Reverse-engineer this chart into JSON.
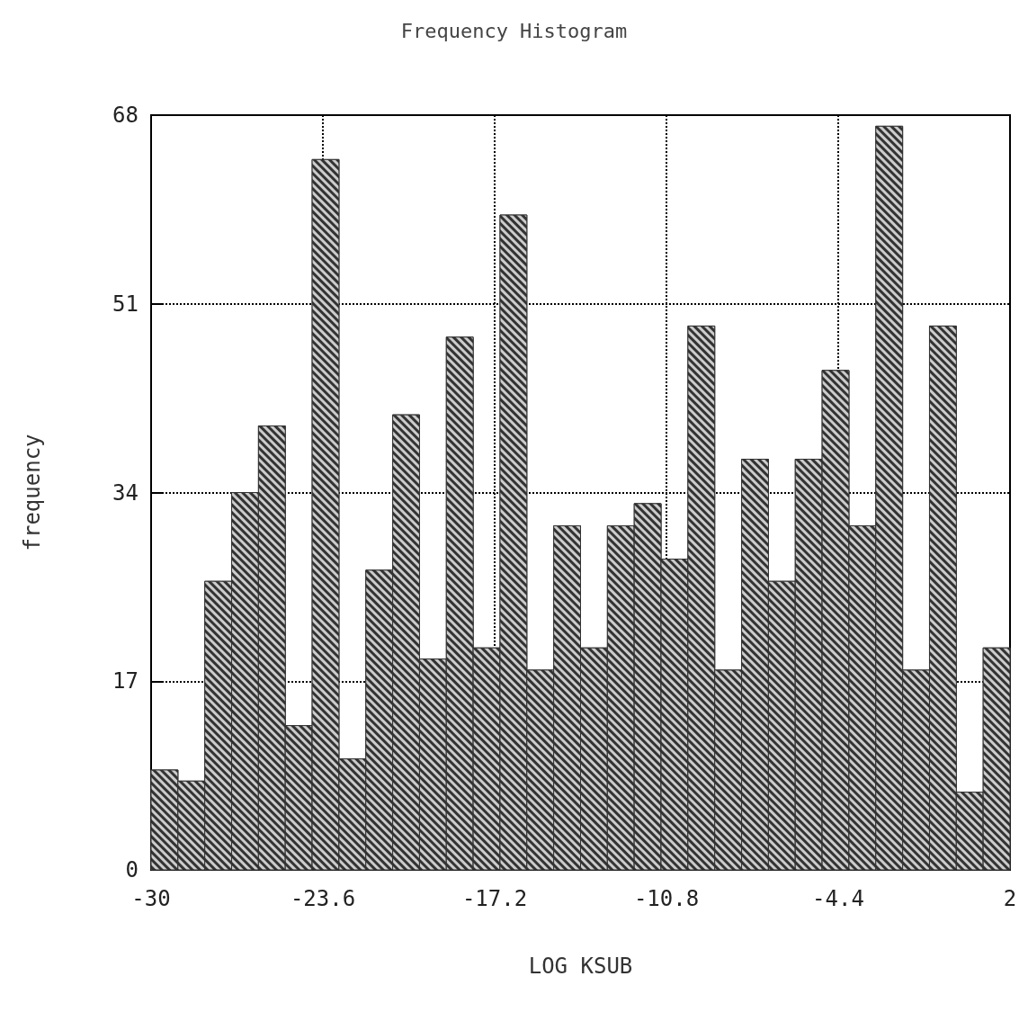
{
  "chart_data": {
    "type": "histogram",
    "title": "Frequency Histogram",
    "xlabel": "LOG KSUB",
    "ylabel": "frequency",
    "bins": [
      -30,
      -29,
      -28,
      -27,
      -26,
      -25,
      -24,
      -23,
      -22,
      -21,
      -20,
      -19,
      -18,
      -17,
      -16,
      -15,
      -14,
      -13,
      -12,
      -11,
      -10,
      -9,
      -8,
      -7,
      -6,
      -5,
      -4,
      -3,
      -2,
      -1,
      0,
      1,
      2
    ],
    "values": [
      9,
      8,
      26,
      34,
      40,
      13,
      64,
      10,
      27,
      41,
      19,
      48,
      20,
      59,
      18,
      31,
      20,
      31,
      33,
      28,
      49,
      18,
      37,
      26,
      37,
      45,
      31,
      67,
      18,
      49,
      7,
      20
    ],
    "color": "#333333",
    "xlim": [
      -30,
      2
    ],
    "xticks": [
      -30,
      -23.6,
      -17.2,
      -10.8,
      -4.4,
      2
    ],
    "ylim": [
      0,
      68
    ],
    "yticks": [
      0,
      17,
      34,
      51,
      68
    ],
    "grid": true
  }
}
